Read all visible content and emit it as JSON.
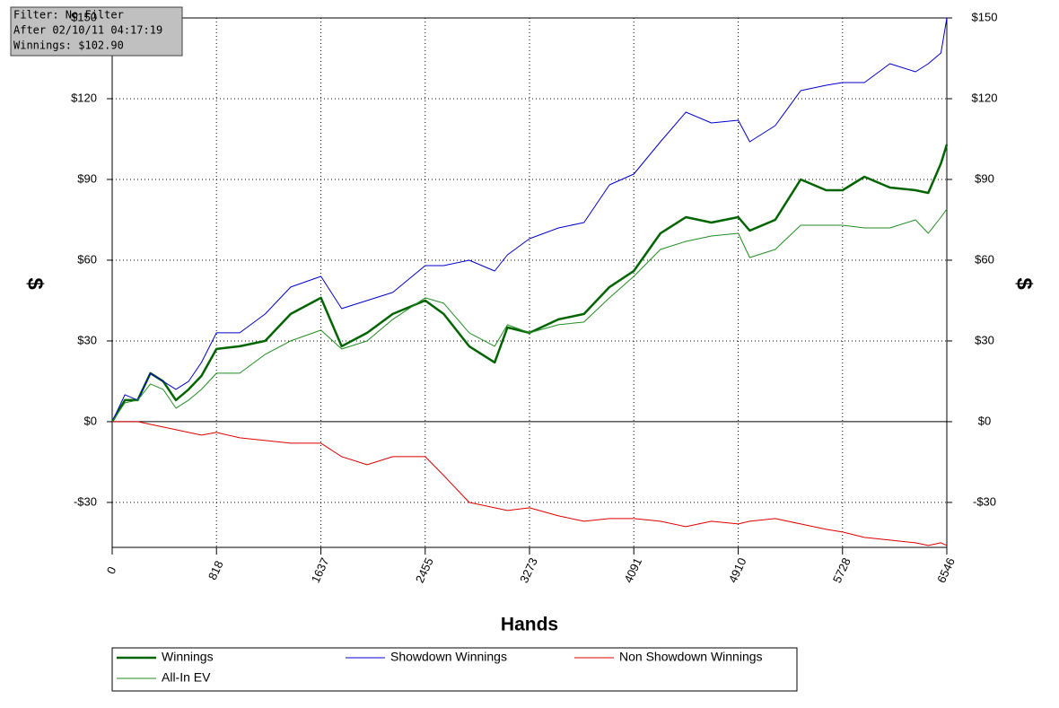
{
  "chart_data": {
    "type": "line",
    "annotations": [
      "Filter: No Filter",
      "After 02/10/11 04:17:19",
      "Winnings: $102.90"
    ],
    "xlabel": "Hands",
    "ylabel": "$",
    "y2label": "$",
    "xlim": [
      0,
      6546
    ],
    "xticks": [
      0,
      818,
      1637,
      2455,
      3273,
      4091,
      4910,
      5728,
      6546
    ],
    "ylim": [
      -46.7,
      150
    ],
    "yticks": [
      {
        "value": -30,
        "label": "-$30"
      },
      {
        "value": 0,
        "label": "$0"
      },
      {
        "value": 30,
        "label": "$30"
      },
      {
        "value": 60,
        "label": "$60"
      },
      {
        "value": 90,
        "label": "$90"
      },
      {
        "value": 120,
        "label": "$120"
      },
      {
        "value": 150,
        "label": "$150"
      }
    ],
    "y2lim": [
      -46.7,
      150
    ],
    "y2ticks": [
      {
        "value": -30,
        "label": "-$30"
      },
      {
        "value": 0,
        "label": "$0"
      },
      {
        "value": 30,
        "label": "$30"
      },
      {
        "value": 60,
        "label": "$60"
      },
      {
        "value": 90,
        "label": "$90"
      },
      {
        "value": 120,
        "label": "$120"
      },
      {
        "value": 150,
        "label": "$150"
      }
    ],
    "grid": true,
    "x": [
      0,
      100,
      200,
      300,
      400,
      500,
      600,
      700,
      818,
      1000,
      1200,
      1400,
      1637,
      1800,
      2000,
      2200,
      2455,
      2600,
      2800,
      3000,
      3100,
      3273,
      3500,
      3700,
      3900,
      4091,
      4300,
      4500,
      4700,
      4910,
      5000,
      5200,
      5400,
      5600,
      5728,
      5900,
      6100,
      6300,
      6400,
      6500,
      6546
    ],
    "series": [
      {
        "name": "Winnings",
        "color": "#006400",
        "width": 2.5,
        "values": [
          0,
          8,
          8,
          18,
          15,
          8,
          12,
          17,
          27,
          28,
          30,
          40,
          46,
          28,
          33,
          40,
          45,
          40,
          28,
          22,
          35,
          33,
          38,
          40,
          50,
          56,
          70,
          76,
          74,
          76,
          71,
          75,
          90,
          86,
          86,
          91,
          87,
          86,
          85,
          96,
          103
        ]
      },
      {
        "name": "Showdown Winnings",
        "color": "#0000cc",
        "width": 1,
        "values": [
          0,
          10,
          8,
          18,
          15,
          12,
          15,
          22,
          33,
          33,
          40,
          50,
          54,
          42,
          45,
          48,
          58,
          58,
          60,
          56,
          62,
          68,
          72,
          74,
          88,
          92,
          104,
          115,
          111,
          112,
          104,
          110,
          123,
          125,
          126,
          126,
          133,
          130,
          133,
          137,
          150
        ]
      },
      {
        "name": "Non Showdown Winnings",
        "color": "#dd0000",
        "width": 1,
        "values": [
          0,
          0,
          0,
          -1,
          -2,
          -3,
          -4,
          -5,
          -4,
          -6,
          -7,
          -8,
          -8,
          -13,
          -16,
          -13,
          -13,
          -20,
          -30,
          -32,
          -33,
          -32,
          -35,
          -37,
          -36,
          -36,
          -37,
          -39,
          -37,
          -38,
          -37,
          -36,
          -38,
          -40,
          -41,
          -43,
          -44,
          -45,
          -46,
          -45,
          -46
        ]
      },
      {
        "name": "All-In EV",
        "color": "#228b22",
        "width": 1,
        "values": [
          0,
          7,
          8,
          14,
          12,
          5,
          8,
          12,
          18,
          18,
          25,
          30,
          34,
          27,
          30,
          38,
          46,
          44,
          33,
          28,
          36,
          33,
          36,
          37,
          46,
          54,
          64,
          67,
          69,
          70,
          61,
          64,
          73,
          73,
          73,
          72,
          72,
          75,
          70,
          76,
          79
        ]
      }
    ]
  }
}
